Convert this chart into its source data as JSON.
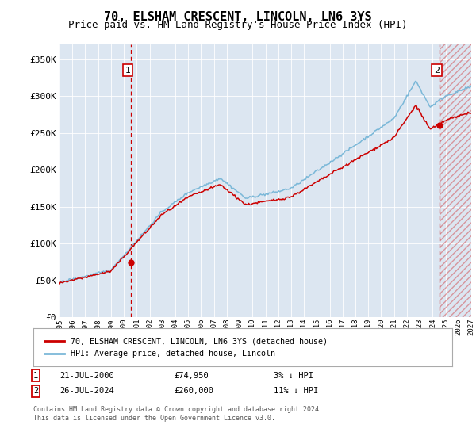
{
  "title": "70, ELSHAM CRESCENT, LINCOLN, LN6 3YS",
  "subtitle": "Price paid vs. HM Land Registry's House Price Index (HPI)",
  "ylim": [
    0,
    370000
  ],
  "yticks": [
    0,
    50000,
    100000,
    150000,
    200000,
    250000,
    300000,
    350000
  ],
  "ytick_labels": [
    "£0",
    "£50K",
    "£100K",
    "£150K",
    "£200K",
    "£250K",
    "£300K",
    "£350K"
  ],
  "x_start_year": 1995,
  "x_end_year": 2027,
  "background_color": "#ffffff",
  "plot_bg_color": "#dce6f1",
  "grid_color": "#ffffff",
  "hpi_color": "#7bb8d8",
  "price_color": "#cc0000",
  "sale1_year": 2000.55,
  "sale1_price": 74950,
  "sale2_year": 2024.55,
  "sale2_price": 260000,
  "legend_label1": "70, ELSHAM CRESCENT, LINCOLN, LN6 3YS (detached house)",
  "legend_label2": "HPI: Average price, detached house, Lincoln",
  "annot1_label": "1",
  "annot1_date": "21-JUL-2000",
  "annot1_price": "£74,950",
  "annot1_hpi": "3% ↓ HPI",
  "annot2_label": "2",
  "annot2_date": "26-JUL-2024",
  "annot2_price": "£260,000",
  "annot2_hpi": "11% ↓ HPI",
  "copyright_text": "Contains HM Land Registry data © Crown copyright and database right 2024.\nThis data is licensed under the Open Government Licence v3.0.",
  "future_hatch_color": "#cc0000",
  "title_fontsize": 11,
  "subtitle_fontsize": 9
}
